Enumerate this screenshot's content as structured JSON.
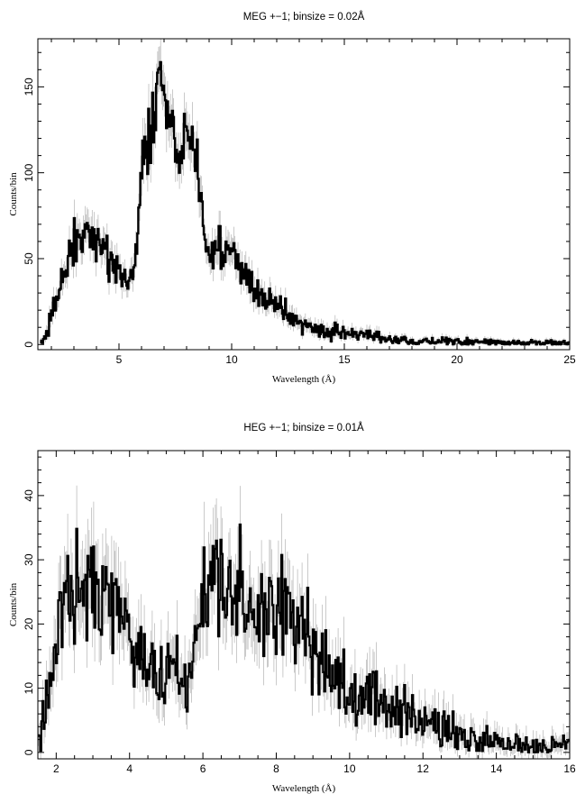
{
  "chart_data": [
    {
      "type": "line",
      "title": "MEG +−1; binsize = 0.02Å",
      "xlabel": "Wavelength (Å)",
      "ylabel": "Counts/bin",
      "xlim": [
        1.4,
        25
      ],
      "ylim": [
        -3,
        178
      ],
      "xticks": [
        5,
        10,
        15,
        20,
        25
      ],
      "xtick_labels": [
        "5",
        "10",
        "15",
        "20",
        "25"
      ],
      "yticks": [
        0,
        50,
        100,
        150
      ],
      "ytick_labels": [
        "0",
        "50",
        "100",
        "150"
      ],
      "grid": false,
      "series": [
        {
          "x": [
            1.5,
            1.6,
            1.7,
            1.8,
            1.9,
            2.0,
            2.2,
            2.4,
            2.6,
            2.8,
            3.0,
            3.2,
            3.4,
            3.6,
            3.8,
            4.0,
            4.2,
            4.4,
            4.6,
            4.8,
            5.0,
            5.2,
            5.4,
            5.6,
            5.8,
            6.0,
            6.1,
            6.2,
            6.4,
            6.6,
            6.8,
            6.9,
            7.0,
            7.1,
            7.2,
            7.4,
            7.6,
            7.8,
            8.0,
            8.2,
            8.4,
            8.6,
            8.8,
            9.0,
            9.2,
            9.4,
            9.6,
            9.8,
            10.0,
            10.5,
            11.0,
            11.5,
            12.0,
            12.5,
            13.0,
            13.5,
            14.0,
            14.5,
            15.0,
            15.5,
            16.0,
            16.5,
            17.0,
            17.5,
            18.0,
            19.0,
            20.0,
            21.0,
            22.0,
            23.0,
            24.0,
            25.0
          ],
          "y": [
            1,
            2,
            4,
            7,
            11,
            16,
            25,
            33,
            42,
            52,
            58,
            60,
            63,
            64,
            62,
            60,
            57,
            55,
            52,
            48,
            45,
            40,
            33,
            40,
            62,
            100,
            108,
            110,
            122,
            140,
            160,
            150,
            145,
            140,
            130,
            118,
            112,
            118,
            122,
            118,
            110,
            92,
            68,
            50,
            48,
            56,
            58,
            54,
            50,
            42,
            34,
            28,
            22,
            18,
            13,
            10,
            8,
            7,
            6,
            5,
            5,
            4,
            3,
            3,
            2,
            2,
            1.5,
            1.5,
            1,
            1,
            1,
            1
          ]
        }
      ]
    },
    {
      "type": "line",
      "title": "HEG +−1; binsize = 0.01Å",
      "xlabel": "Wavelength (Å)",
      "ylabel": "Counts/bin",
      "xlim": [
        1.5,
        16
      ],
      "ylim": [
        -1,
        47
      ],
      "xticks": [
        2,
        4,
        6,
        8,
        10,
        12,
        14,
        16
      ],
      "xtick_labels": [
        "2",
        "4",
        "6",
        "8",
        "10",
        "12",
        "14",
        "16"
      ],
      "yticks": [
        0,
        10,
        20,
        30,
        40
      ],
      "ytick_labels": [
        "0",
        "10",
        "20",
        "30",
        "40"
      ],
      "grid": false,
      "series": [
        {
          "x": [
            1.5,
            1.6,
            1.7,
            1.8,
            1.9,
            2.0,
            2.2,
            2.4,
            2.6,
            2.8,
            3.0,
            3.2,
            3.4,
            3.6,
            3.8,
            4.0,
            4.2,
            4.4,
            4.6,
            4.8,
            5.0,
            5.2,
            5.4,
            5.6,
            5.8,
            6.0,
            6.2,
            6.4,
            6.6,
            6.8,
            7.0,
            7.2,
            7.4,
            7.6,
            7.8,
            8.0,
            8.2,
            8.4,
            8.6,
            8.8,
            9.0,
            9.2,
            9.4,
            9.6,
            9.8,
            10.0,
            10.5,
            11.0,
            11.5,
            12.0,
            12.5,
            13.0,
            13.5,
            14.0,
            14.5,
            15.0,
            15.5,
            16.0
          ],
          "y": [
            1,
            3,
            6,
            10,
            14,
            18,
            22,
            25,
            27,
            28,
            27,
            26,
            25,
            24,
            22,
            20,
            17,
            15,
            13,
            12,
            11,
            13,
            10,
            12,
            17,
            24,
            27,
            26,
            25,
            26,
            27,
            25,
            24,
            23,
            24,
            23,
            22,
            21,
            20,
            18,
            16,
            15,
            13,
            12,
            11,
            10,
            9,
            7,
            5.5,
            4.5,
            3.5,
            2.5,
            2,
            1.5,
            1.2,
            1,
            1,
            1
          ]
        }
      ]
    }
  ]
}
